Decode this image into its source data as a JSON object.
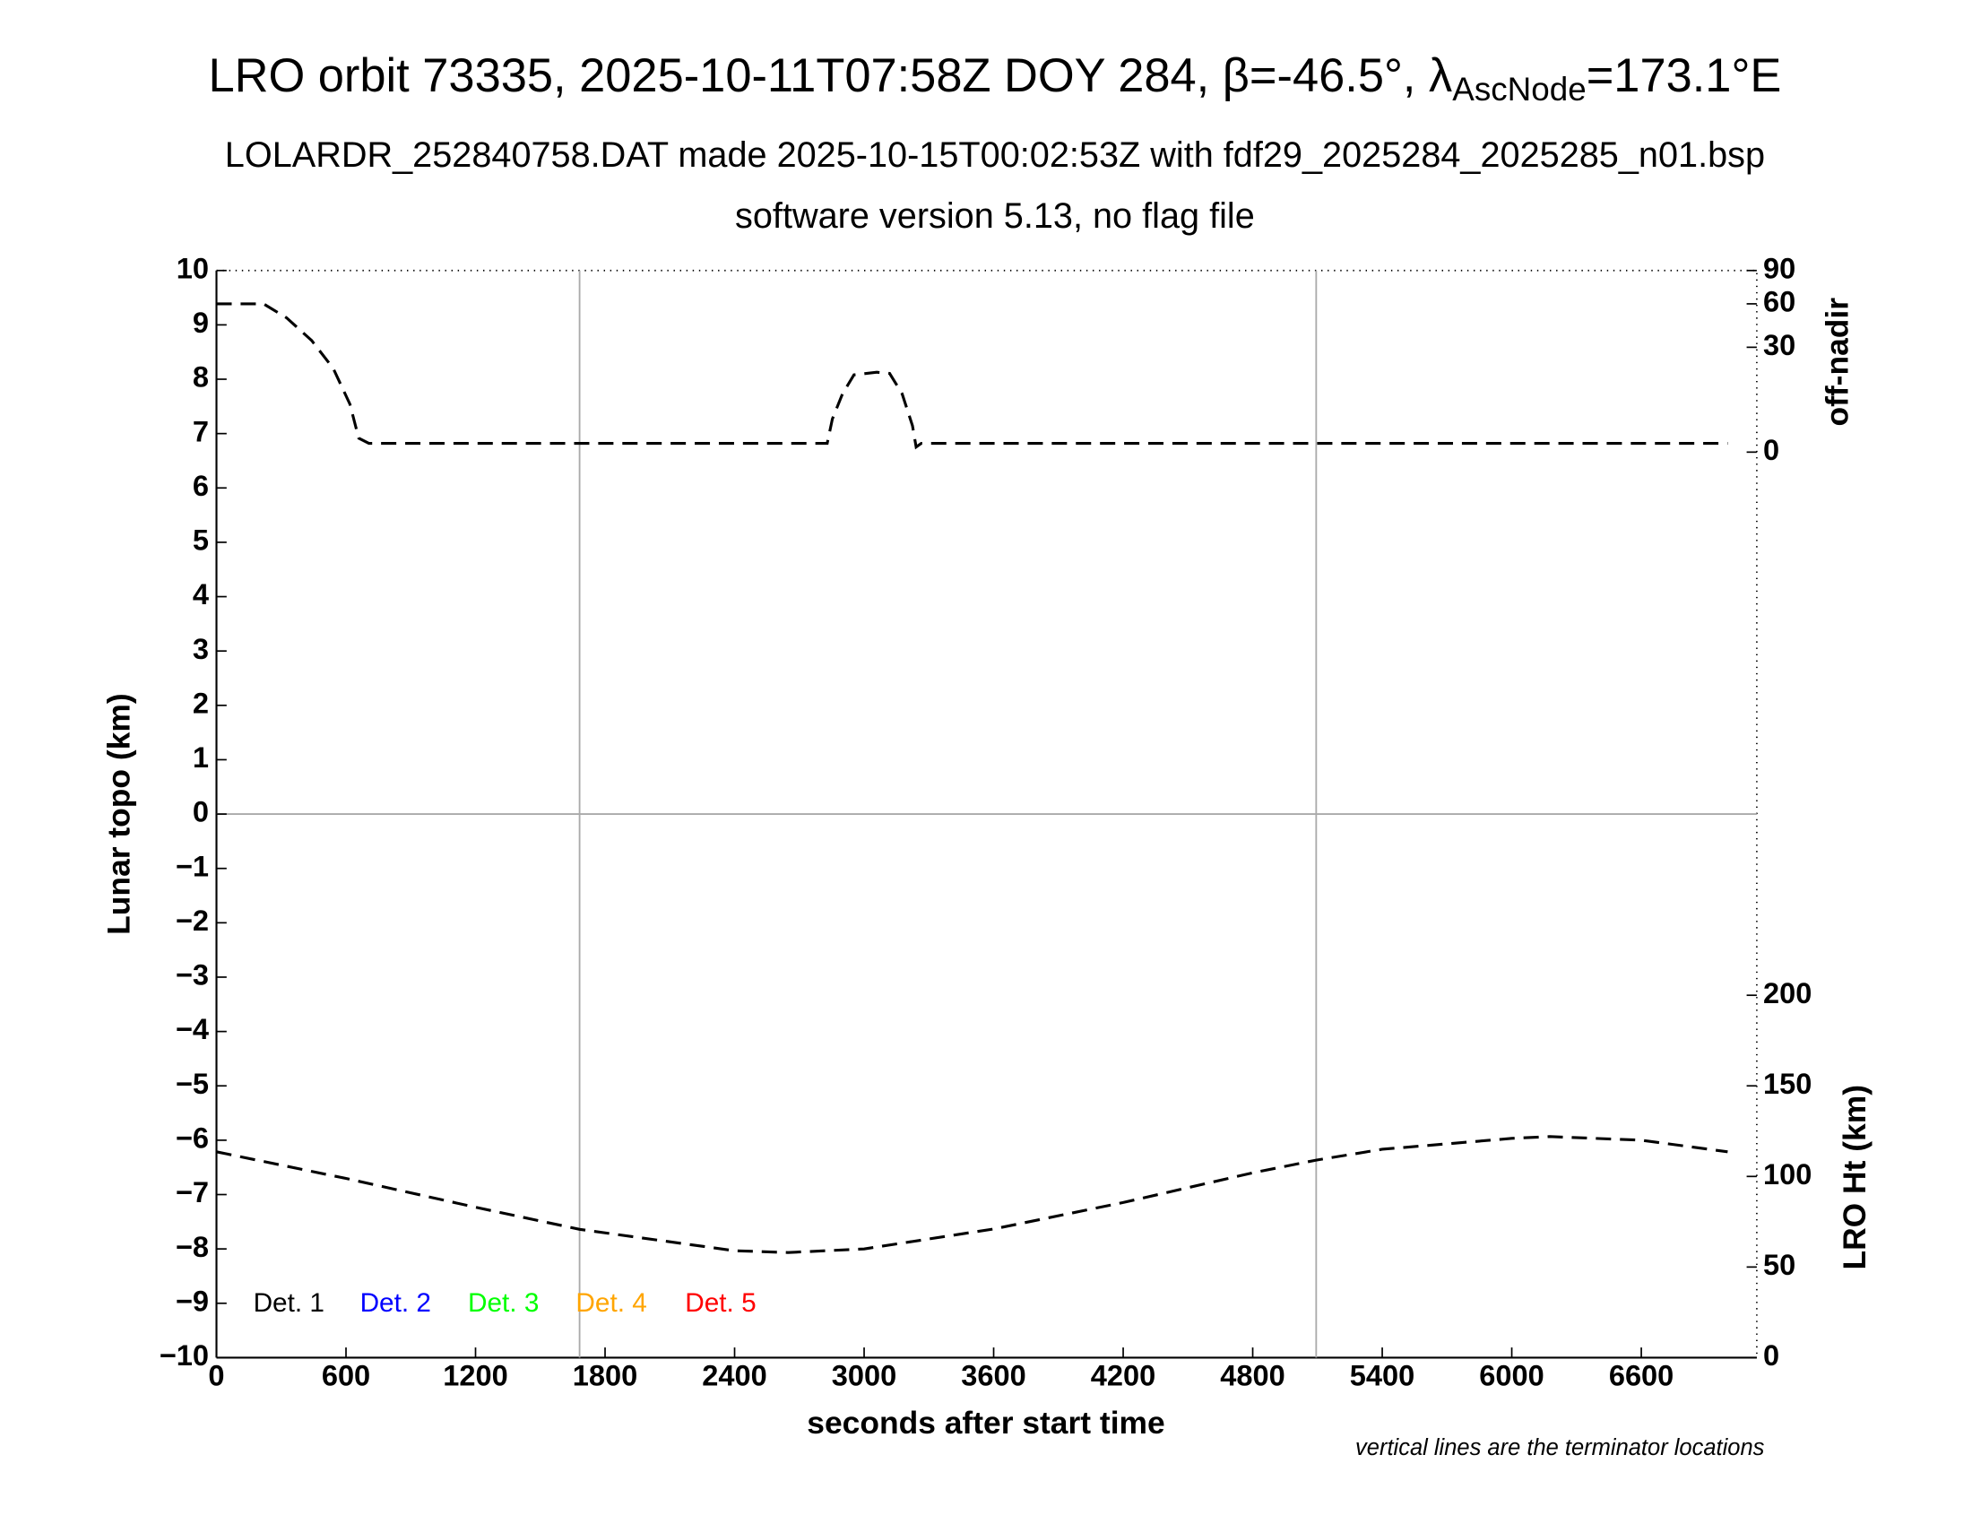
{
  "chart_data": {
    "type": "line",
    "title": {
      "main": "LRO orbit 73335, 2025-10-11T07:58Z DOY 284, β=-46.5°, λ",
      "subscript": "AscNode",
      "end": "=173.1°E"
    },
    "subtitle": "LOLARDR_252840758.DAT made 2025-10-15T00:02:53Z with fdf29_2025284_2025285_n01.bsp",
    "subtitle2": "software version 5.13, no flag file",
    "x_label": "seconds after start time",
    "y_label": "Lunar topo (km)",
    "y2_label": "LRO Ht (km)",
    "y3_label": "off-nadir",
    "note": "vertical lines are the terminator locations",
    "xlim": [
      0,
      7135
    ],
    "xticks": [
      0,
      600,
      1200,
      1800,
      2400,
      3000,
      3600,
      4200,
      4800,
      5400,
      6000,
      6600
    ],
    "ylim": [
      -10,
      10
    ],
    "yticks": [
      {
        "value": -10,
        "label": "−10"
      },
      {
        "value": -9,
        "label": "−9"
      },
      {
        "value": -8,
        "label": "−8"
      },
      {
        "value": -7,
        "label": "−7"
      },
      {
        "value": -6,
        "label": "−6"
      },
      {
        "value": -5,
        "label": "−5"
      },
      {
        "value": -4,
        "label": "−4"
      },
      {
        "value": -3,
        "label": "−3"
      },
      {
        "value": -2,
        "label": "−2"
      },
      {
        "value": -1,
        "label": "−1"
      },
      0,
      1,
      2,
      3,
      4,
      5,
      6,
      7,
      8,
      9,
      10
    ],
    "y2lim": [
      0,
      600
    ],
    "y2ticks": [
      0,
      50,
      100,
      150,
      200
    ],
    "y3lim": [
      0,
      90
    ],
    "y3scale": "sqrt",
    "y3ticks": [
      0,
      30,
      60,
      90
    ],
    "terminators": [
      1682,
      5094
    ],
    "zero_line": 0,
    "legend": [
      {
        "name": "Det. 1",
        "color": "#000000"
      },
      {
        "name": "Det. 2",
        "color": "#0000ff"
      },
      {
        "name": "Det. 3",
        "color": "#00ff00"
      },
      {
        "name": "Det. 4",
        "color": "#ffa500"
      },
      {
        "name": "Det. 5",
        "color": "#ff0000"
      }
    ],
    "series": [
      {
        "axis": "y3",
        "color": "#000000",
        "x": [
          0,
          218,
          324,
          441,
          541,
          618,
          659,
          706,
          2829,
          2853,
          2900,
          2953,
          3059,
          3118,
          3176,
          3224,
          3241,
          3265,
          7000
        ],
        "values": [
          60,
          60,
          49.3,
          34,
          19.1,
          6.3,
          0.53,
          0.21,
          0.21,
          3.0,
          9.3,
          16.3,
          17.4,
          16.9,
          9.3,
          1.9,
          0.07,
          0.21,
          0.21
        ]
      },
      {
        "axis": "y2",
        "color": "#000000",
        "x": [
          0,
          600,
          1200,
          1682,
          2400,
          2647,
          3000,
          3600,
          4200,
          4800,
          5094,
          5400,
          6000,
          6176,
          6600,
          7000
        ],
        "values": [
          113.6,
          98.9,
          83,
          70.8,
          59,
          58,
          60,
          71,
          85.6,
          102,
          109,
          115,
          121,
          122,
          120,
          113.6
        ]
      }
    ]
  }
}
